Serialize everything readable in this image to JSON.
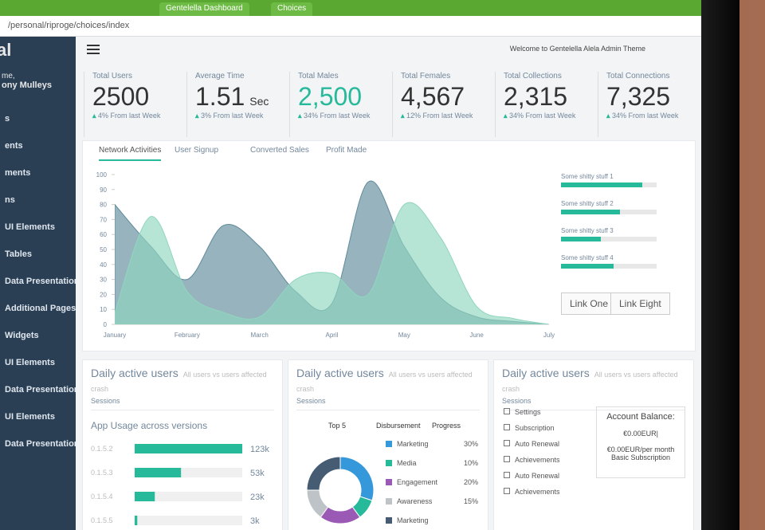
{
  "browser": {
    "tabs": [
      "Gentelella Dashboard",
      "Choices"
    ],
    "url": "/personal/riproge/choices/index"
  },
  "sidebar": {
    "brand": "al",
    "greeting": "me,",
    "user": "ony Mulleys",
    "items": [
      "s",
      "ents",
      "ments",
      "ns",
      "UI Elements",
      "Tables",
      "Data Presentation",
      "Additional Pages",
      "Widgets",
      "UI Elements",
      "Data Presentation",
      "UI Elements",
      "Data Presentation"
    ]
  },
  "header": {
    "welcome": "Welcome to Gentelella Alela Admin Theme"
  },
  "stats": [
    {
      "label": "Total Users",
      "value": "2500",
      "change": "4% From last Week"
    },
    {
      "label": "Average Time",
      "value": "1.51",
      "unit": "Sec",
      "change": "3% From last Week"
    },
    {
      "label": "Total Males",
      "value": "2,500",
      "change": "34% From last Week"
    },
    {
      "label": "Total Females",
      "value": "4,567",
      "change": "12% From last Week"
    },
    {
      "label": "Total Collections",
      "value": "2,315",
      "change": "34% From last Week"
    },
    {
      "label": "Total Connections",
      "value": "7,325",
      "change": "34% From last Week"
    }
  ],
  "tabs": [
    "Network Activities",
    "User Signup",
    "Converted Sales",
    "Profit Made"
  ],
  "chart_data": {
    "type": "area",
    "categories": [
      "January",
      null,
      "February",
      null,
      "March",
      null,
      "April",
      null,
      "May",
      null,
      "June",
      null,
      "July"
    ],
    "series": [
      {
        "color": "#5f8b9b",
        "values": [
          80,
          52,
          30,
          66,
          52,
          22,
          14,
          95,
          52,
          18,
          5,
          2,
          0
        ]
      },
      {
        "color": "#8fd6bf",
        "values": [
          8,
          72,
          22,
          8,
          5,
          30,
          34,
          20,
          80,
          58,
          12,
          4,
          0
        ]
      }
    ],
    "ylim": [
      0,
      100
    ],
    "yticks": [
      0,
      10,
      20,
      30,
      40,
      50,
      60,
      70,
      80,
      90,
      100
    ]
  },
  "progress": {
    "items": [
      {
        "name": "Some shitty stuff 1",
        "value": 85
      },
      {
        "name": "Some shitty stuff 2",
        "value": 62
      },
      {
        "name": "Some shitty stuff 3",
        "value": 42
      },
      {
        "name": "Some shitty stuff 4",
        "value": 55
      }
    ],
    "links": [
      "Link One",
      "Link Eight"
    ]
  },
  "usage": {
    "title": "Daily active users",
    "note": "All users vs users affected crash",
    "subtitle": "Sessions",
    "heading": "App Usage across versions",
    "rows": [
      {
        "version": "0.1.5.2",
        "value": 123,
        "value_label": "123k"
      },
      {
        "version": "0.1.5.3",
        "value": 53,
        "value_label": "53k"
      },
      {
        "version": "0.1.5.4",
        "value": 23,
        "value_label": "23k"
      },
      {
        "version": "0.1.5.5",
        "value": 3,
        "value_label": "3k"
      }
    ]
  },
  "donut": {
    "title": "Daily active users",
    "note": "All users vs users affected crash",
    "subtitle": "Sessions",
    "columns": [
      "Top 5",
      "Disbursement",
      "Progress"
    ],
    "items": [
      {
        "name": "Marketing",
        "value": 30,
        "value_label": "30%",
        "color": "#3498db"
      },
      {
        "name": "Media",
        "value": 10,
        "value_label": "10%",
        "color": "#26b99a"
      },
      {
        "name": "Engagement",
        "value": 20,
        "value_label": "20%",
        "color": "#9b59b6"
      },
      {
        "name": "Awareness",
        "value": 15,
        "value_label": "15%",
        "color": "#bdc3c7"
      },
      {
        "name": "Marketing",
        "value": 25,
        "color": "#455c73"
      }
    ]
  },
  "account": {
    "title": "Daily active users",
    "note": "All users vs users affected crash",
    "subtitle": "Sessions",
    "items": [
      "Settings",
      "Subscription",
      "Auto Renewal",
      "Achievements",
      "Auto Renewal",
      "Achievements"
    ],
    "balance_title": "Account Balance:",
    "balance": "€0.00EUR|",
    "monthly": "€0.00EUR/per month",
    "plan": "Basic Subscription"
  }
}
